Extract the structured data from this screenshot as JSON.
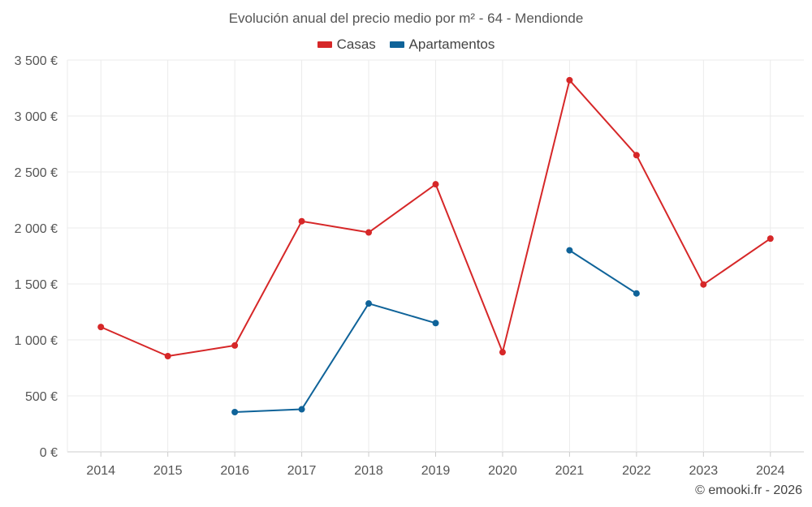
{
  "chart_data": {
    "type": "line",
    "title": "Evolución anual del precio medio por m² - 64 - Mendionde",
    "xlabel": "",
    "ylabel": "",
    "categories": [
      "2014",
      "2015",
      "2016",
      "2017",
      "2018",
      "2019",
      "2020",
      "2021",
      "2022",
      "2023",
      "2024"
    ],
    "ylim": [
      0,
      3500
    ],
    "yticks": [
      0,
      500,
      1000,
      1500,
      2000,
      2500,
      3000,
      3500
    ],
    "ytick_labels": [
      "0 €",
      "500 €",
      "1 000 €",
      "1 500 €",
      "2 000 €",
      "2 500 €",
      "3 000 €",
      "3 500 €"
    ],
    "grid": true,
    "legend_position": "top-center",
    "series": [
      {
        "name": "Casas",
        "color": "#d62728",
        "values": [
          1115,
          855,
          950,
          2060,
          1960,
          2390,
          890,
          3320,
          2650,
          1495,
          1905
        ]
      },
      {
        "name": "Apartamentos",
        "color": "#0f6399",
        "values": [
          null,
          null,
          355,
          380,
          1325,
          1150,
          null,
          1800,
          1415,
          null,
          null
        ]
      }
    ]
  },
  "credit": "© emooki.fr - 2026"
}
